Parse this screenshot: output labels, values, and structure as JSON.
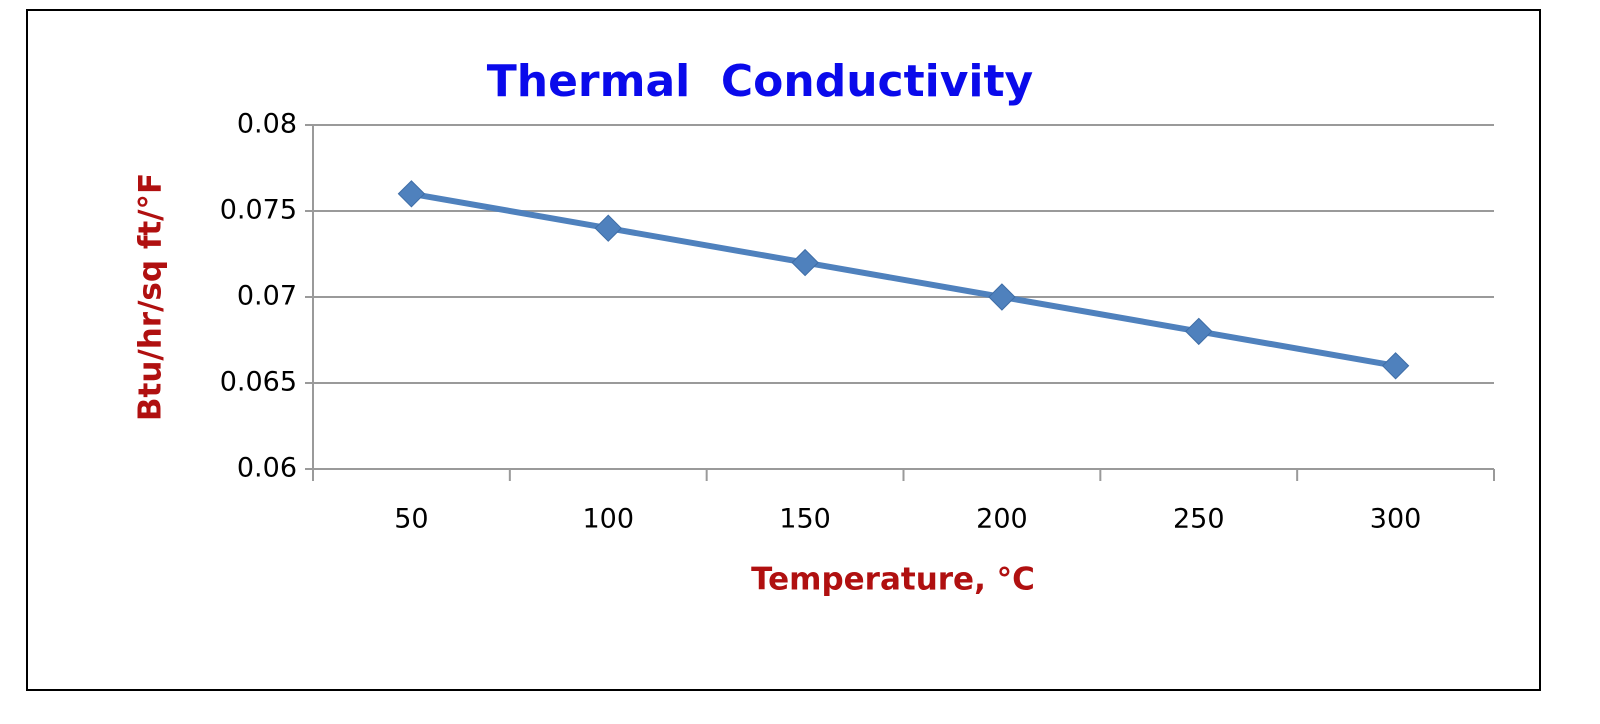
{
  "chart_data": {
    "type": "line",
    "title": "Thermal  Conductivity",
    "x_label": "Temperature, °C",
    "y_label": "Btu/hr/sq ft/°F",
    "categories": [
      "50",
      "100",
      "150",
      "200",
      "250",
      "300"
    ],
    "values": [
      0.076,
      0.074,
      0.072,
      0.07,
      0.068,
      0.066
    ],
    "color": "#4f81bd",
    "ylim": [
      0.06,
      0.08
    ],
    "yticks": [
      0.06,
      0.065,
      0.07,
      0.075,
      0.08
    ],
    "grid": true
  }
}
